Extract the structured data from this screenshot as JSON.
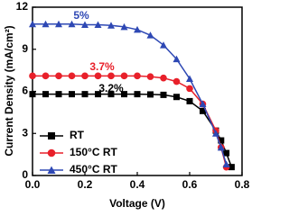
{
  "chart_data": {
    "type": "line",
    "xlabel": "Voltage (V)",
    "ylabel": "Current Density (mA/cm²)",
    "xlim": [
      0,
      0.8
    ],
    "xticks": [
      {
        "value": 0,
        "label": "0.0"
      },
      0.2,
      0.4,
      0.6,
      0.8
    ],
    "ylim": [
      0,
      12
    ],
    "yticks": [
      0,
      3,
      6,
      9,
      12
    ],
    "legend": "lower left",
    "series": [
      {
        "name": "RT",
        "color": "#000000",
        "marker": "square",
        "x": [
          0,
          0.05,
          0.1,
          0.15,
          0.2,
          0.25,
          0.3,
          0.35,
          0.4,
          0.45,
          0.5,
          0.55,
          0.6,
          0.65,
          0.7,
          0.72,
          0.74,
          0.76
        ],
        "values": [
          5.8,
          5.8,
          5.8,
          5.8,
          5.8,
          5.8,
          5.8,
          5.8,
          5.8,
          5.78,
          5.75,
          5.6,
          5.3,
          4.6,
          3.2,
          2.5,
          1.6,
          0.6
        ]
      },
      {
        "name": "150°C RT",
        "color": "#e8202a",
        "marker": "circle",
        "x": [
          0,
          0.05,
          0.1,
          0.15,
          0.2,
          0.25,
          0.3,
          0.35,
          0.4,
          0.45,
          0.5,
          0.55,
          0.6,
          0.65,
          0.7,
          0.72,
          0.74
        ],
        "values": [
          7.1,
          7.1,
          7.1,
          7.1,
          7.1,
          7.1,
          7.1,
          7.1,
          7.1,
          7.05,
          6.95,
          6.7,
          6.2,
          5.1,
          3.2,
          2.0,
          0.6
        ]
      },
      {
        "name": "450°C RT",
        "color": "#2e48b4",
        "marker": "triangle",
        "x": [
          0,
          0.05,
          0.1,
          0.15,
          0.2,
          0.25,
          0.3,
          0.35,
          0.4,
          0.45,
          0.5,
          0.55,
          0.6,
          0.65,
          0.7,
          0.72,
          0.74
        ],
        "values": [
          10.8,
          10.8,
          10.8,
          10.8,
          10.75,
          10.75,
          10.7,
          10.6,
          10.4,
          10.0,
          9.3,
          8.3,
          6.9,
          5.1,
          3.0,
          2.0,
          0.8
        ]
      }
    ],
    "annotations": [
      {
        "text": "5%",
        "color": "#2e48b4"
      },
      {
        "text": "3.7%",
        "color": "#e8202a"
      },
      {
        "text": "3.2%",
        "color": "#000000"
      }
    ]
  }
}
